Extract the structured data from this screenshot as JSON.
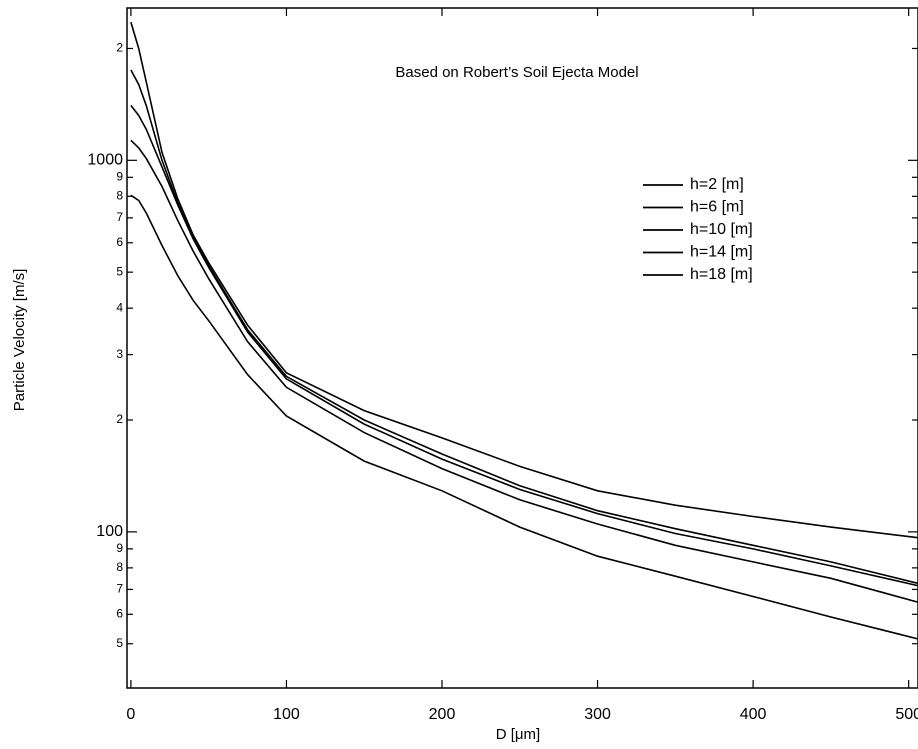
{
  "chart_data": {
    "type": "line",
    "log_y": true,
    "annotation": "Based on Robert’s Soil Ejecta Model",
    "x_label": "D [μm]",
    "y_label": "Particle Velocity [m/s]",
    "x": [
      0,
      5,
      10,
      20,
      30,
      40,
      50,
      75,
      100,
      150,
      200,
      250,
      300,
      350,
      400,
      450,
      510
    ],
    "series": [
      {
        "name": "h=2 [m]",
        "color": "#000000",
        "values": [
          2355,
          2000,
          1620,
          1050,
          790,
          630,
          530,
          360,
          268,
          212,
          179,
          150,
          129,
          118,
          110,
          103,
          96
        ]
      },
      {
        "name": "h=6 [m]",
        "color": "#000000",
        "values": [
          1750,
          1600,
          1400,
          1000,
          770,
          620,
          520,
          350,
          262,
          200,
          162,
          133,
          114,
          102,
          92,
          83,
          72
        ]
      },
      {
        "name": "h=10 [m]",
        "color": "#000000",
        "values": [
          1405,
          1320,
          1210,
          960,
          760,
          615,
          515,
          345,
          258,
          195,
          157,
          130,
          112,
          99,
          90,
          81,
          71
        ]
      },
      {
        "name": "h=14 [m]",
        "color": "#000000",
        "values": [
          1132,
          1080,
          1010,
          850,
          690,
          570,
          480,
          325,
          245,
          185,
          148,
          122,
          105,
          92,
          83,
          75,
          64
        ]
      },
      {
        "name": "h=18 [m]",
        "color": "#000000",
        "values": [
          805,
          780,
          720,
          590,
          490,
          420,
          370,
          265,
          205,
          155,
          129,
          103,
          86,
          76,
          67,
          59,
          51
        ]
      }
    ],
    "xlim": [
      -2.5,
      506
    ],
    "xticks": [
      0,
      100,
      200,
      300,
      400,
      500
    ],
    "ylim": [
      38,
      2570
    ],
    "yticks": [
      {
        "value": 50,
        "label": "5"
      },
      {
        "value": 60,
        "label": "6"
      },
      {
        "value": 70,
        "label": "7"
      },
      {
        "value": 80,
        "label": "8"
      },
      {
        "value": 90,
        "label": "9"
      },
      100,
      {
        "value": 200,
        "label": "2"
      },
      {
        "value": 300,
        "label": "3"
      },
      {
        "value": 400,
        "label": "4"
      },
      {
        "value": 500,
        "label": "5"
      },
      {
        "value": 600,
        "label": "6"
      },
      {
        "value": 700,
        "label": "7"
      },
      {
        "value": 800,
        "label": "8"
      },
      {
        "value": 900,
        "label": "9"
      },
      1000,
      {
        "value": 2000,
        "label": "2"
      }
    ],
    "grid": false,
    "legend": "upper right"
  }
}
